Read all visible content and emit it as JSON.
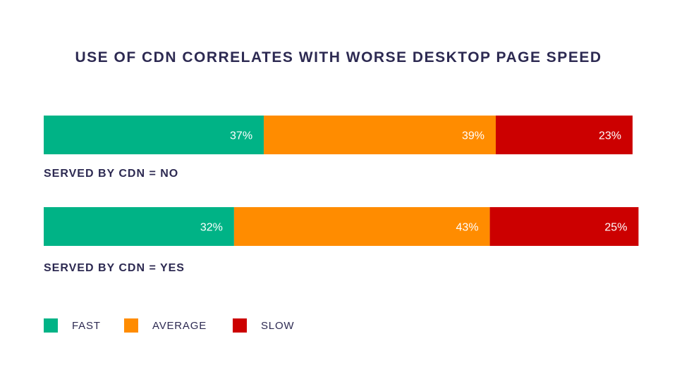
{
  "chart_data": {
    "type": "bar",
    "orientation": "horizontal-stacked-100",
    "title": "USE OF CDN CORRELATES WITH WORSE DESKTOP PAGE SPEED",
    "categories": [
      "SERVED BY CDN = NO",
      "SERVED BY CDN = YES"
    ],
    "series": [
      {
        "name": "FAST",
        "color": "#00b386",
        "values": [
          37,
          32
        ],
        "labels": [
          "37%",
          "32%"
        ]
      },
      {
        "name": "AVERAGE",
        "color": "#ff8c00",
        "values": [
          39,
          43
        ],
        "labels": [
          "39%",
          "43%"
        ]
      },
      {
        "name": "SLOW",
        "color": "#cc0000",
        "values": [
          23,
          25
        ],
        "labels": [
          "23%",
          "25%"
        ]
      }
    ],
    "xlim": [
      0,
      99
    ],
    "grid": false,
    "legend_position": "bottom-left"
  }
}
